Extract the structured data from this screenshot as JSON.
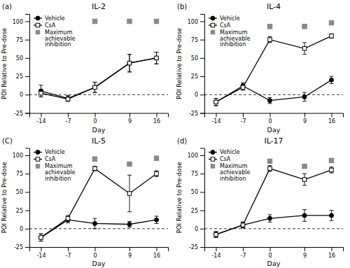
{
  "chart_data": [
    {
      "type": "line",
      "title": "IL-2",
      "annotation": "(a)",
      "xlabel": "Day",
      "ylabel": "POI Relative to Pre-dose",
      "x": [
        -14,
        -7,
        0,
        9,
        16
      ],
      "series": [
        {
          "name": "Vehicle",
          "type": "line",
          "color": "#000000",
          "marker": "circle",
          "line_style": "solid",
          "values": [
            5,
            -5,
            10,
            43,
            50
          ],
          "errors": [
            8,
            4,
            7,
            12,
            8
          ]
        },
        {
          "name": "CsA",
          "type": "line",
          "color": "#000000",
          "marker": "open-square",
          "line_style": "solid",
          "values": [
            2,
            -6,
            10,
            43,
            50
          ],
          "errors": [
            5,
            3,
            7,
            12,
            8
          ]
        },
        {
          "name": "Maximum\nachievable\ninhibition",
          "type": "scatter",
          "color": "#888888",
          "marker": "square",
          "line_style": "none",
          "x": [
            0,
            9,
            16
          ],
          "values": [
            100,
            100,
            100
          ]
        }
      ],
      "hline": 0,
      "xlim": [
        -17,
        19
      ],
      "xticks": [
        -14,
        -7,
        0,
        9,
        16
      ],
      "ylim": [
        -25,
        110
      ],
      "yticks": [
        -25,
        0,
        25,
        50,
        75,
        100
      ],
      "legend": "upper left",
      "grid": false
    },
    {
      "type": "line",
      "title": "IL-4",
      "annotation": "(b)",
      "xlabel": "Day",
      "ylabel": "POI Relative to Pre-dose",
      "x": [
        -14,
        -7,
        0,
        9,
        16
      ],
      "series": [
        {
          "name": "Vehicle",
          "type": "line",
          "color": "#000000",
          "marker": "circle",
          "line_style": "solid",
          "values": [
            -10,
            12,
            -8,
            -3,
            20
          ],
          "errors": [
            5,
            4,
            4,
            6,
            5
          ]
        },
        {
          "name": "CsA",
          "type": "line",
          "color": "#000000",
          "marker": "open-square",
          "line_style": "solid",
          "values": [
            -10,
            10,
            75,
            63,
            80
          ],
          "errors": [
            5,
            4,
            4,
            8,
            3
          ]
        },
        {
          "name": "Maximum\nachievable\ninhibition",
          "type": "scatter",
          "color": "#888888",
          "marker": "square",
          "line_style": "none",
          "x": [
            0,
            9,
            16
          ],
          "values": [
            93,
            93,
            98
          ]
        }
      ],
      "hline": 0,
      "xlim": [
        -17,
        19
      ],
      "xticks": [
        -14,
        -7,
        0,
        9,
        16
      ],
      "ylim": [
        -25,
        110
      ],
      "yticks": [
        -25,
        0,
        25,
        50,
        75,
        100
      ],
      "legend": "upper left",
      "grid": false
    },
    {
      "type": "line",
      "title": "IL-5",
      "annotation": "(C)",
      "xlabel": "Day",
      "ylabel": "POI Relative to Pre-dose",
      "x": [
        -14,
        -7,
        0,
        9,
        16
      ],
      "series": [
        {
          "name": "Vehicle",
          "type": "line",
          "color": "#000000",
          "marker": "circle",
          "line_style": "solid",
          "values": [
            -12,
            12,
            7,
            6,
            12
          ],
          "errors": [
            5,
            4,
            7,
            4,
            5
          ]
        },
        {
          "name": "CsA",
          "type": "line",
          "color": "#000000",
          "marker": "open-square",
          "line_style": "solid",
          "values": [
            -12,
            14,
            82,
            48,
            75
          ],
          "errors": [
            5,
            4,
            3,
            25,
            4
          ]
        },
        {
          "name": "Maximum\nachievable\ninhibition",
          "type": "scatter",
          "color": "#888888",
          "marker": "square",
          "line_style": "none",
          "x": [
            0,
            9,
            16
          ],
          "values": [
            95,
            88,
            96
          ]
        }
      ],
      "hline": 0,
      "xlim": [
        -17,
        19
      ],
      "xticks": [
        -14,
        -7,
        0,
        9,
        16
      ],
      "ylim": [
        -25,
        110
      ],
      "yticks": [
        -25,
        0,
        25,
        50,
        75,
        100
      ],
      "legend": "upper left",
      "grid": false
    },
    {
      "type": "line",
      "title": "IL-17",
      "annotation": "(d)",
      "xlabel": "Day",
      "ylabel": "POI Relative to Pre-dose",
      "x": [
        -14,
        -7,
        0,
        9,
        16
      ],
      "series": [
        {
          "name": "Vehicle",
          "type": "line",
          "color": "#000000",
          "marker": "circle",
          "line_style": "solid",
          "values": [
            -8,
            5,
            14,
            18,
            18
          ],
          "errors": [
            4,
            4,
            5,
            8,
            7
          ]
        },
        {
          "name": "CsA",
          "type": "line",
          "color": "#000000",
          "marker": "open-square",
          "line_style": "solid",
          "values": [
            -8,
            5,
            82,
            67,
            80
          ],
          "errors": [
            4,
            4,
            4,
            8,
            4
          ]
        },
        {
          "name": "Maximum\nachievable\ninhibition",
          "type": "scatter",
          "color": "#888888",
          "marker": "square",
          "line_style": "none",
          "x": [
            0,
            9,
            16
          ],
          "values": [
            92,
            85,
            93
          ]
        }
      ],
      "hline": 0,
      "xlim": [
        -17,
        19
      ],
      "xticks": [
        -14,
        -7,
        0,
        9,
        16
      ],
      "ylim": [
        -25,
        110
      ],
      "yticks": [
        -25,
        0,
        25,
        50,
        75,
        100
      ],
      "legend": "upper left",
      "grid": false
    }
  ]
}
